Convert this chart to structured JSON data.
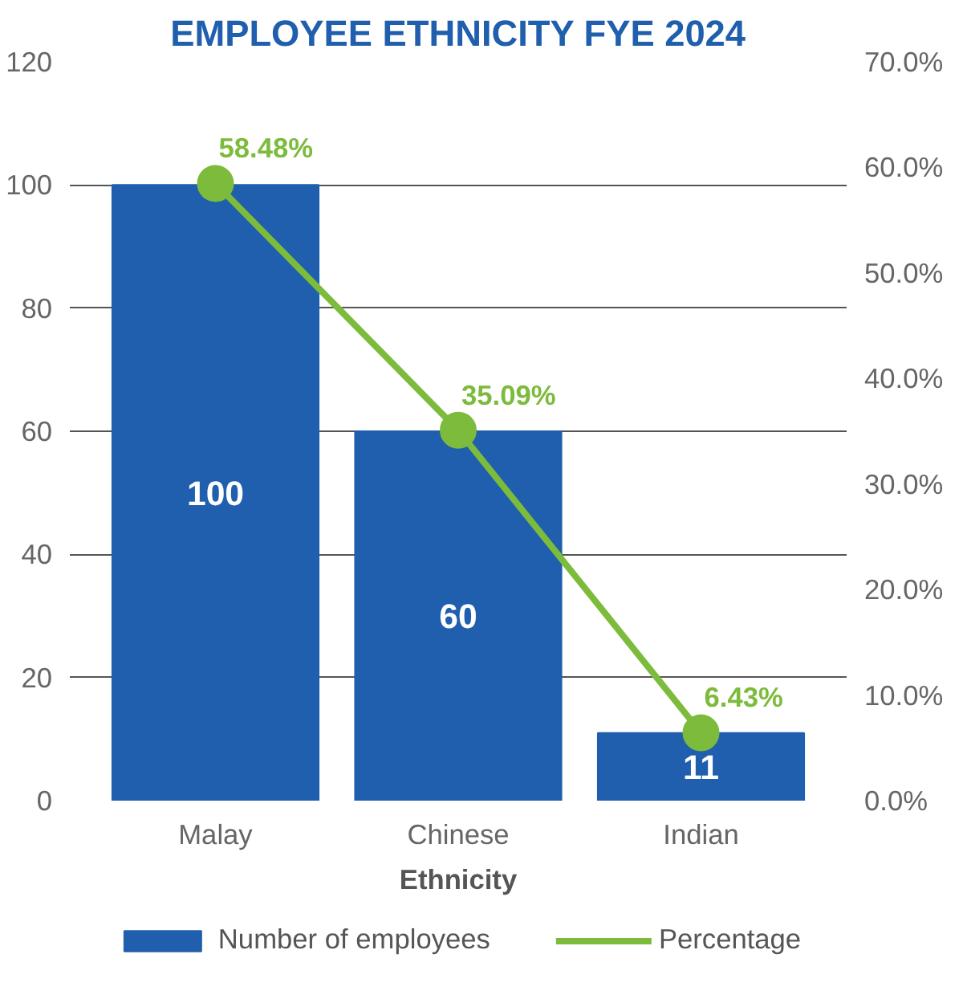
{
  "chart_data": {
    "type": "bar",
    "title": "EMPLOYEE ETHNICITY FYE 2024",
    "xlabel": "Ethnicity",
    "categories": [
      "Malay",
      "Chinese",
      "Indian"
    ],
    "series": [
      {
        "name": "Number of employees",
        "color": "#1f5fad",
        "values": [
          100,
          60,
          11
        ],
        "value_labels": [
          "100",
          "60",
          "11"
        ]
      },
      {
        "name": "Percentage",
        "type": "line",
        "axis": "y2",
        "color": "#7dbb3c",
        "values": [
          58.48,
          35.09,
          6.43
        ],
        "value_labels": [
          "58.48%",
          "35.09%",
          "6.43%"
        ],
        "marker": "circle"
      }
    ],
    "ylim": [
      0,
      120
    ],
    "yticks": [
      0,
      20,
      40,
      60,
      80,
      100,
      120
    ],
    "y2lim": [
      0,
      70
    ],
    "y2ticks": [
      {
        "value": 0,
        "label": "0.0%"
      },
      {
        "value": 10,
        "label": "10.0%"
      },
      {
        "value": 20,
        "label": "20.0%"
      },
      {
        "value": 30,
        "label": "30.0%"
      },
      {
        "value": 40,
        "label": "40.0%"
      },
      {
        "value": 50,
        "label": "50.0%"
      },
      {
        "value": 60,
        "label": "60.0%"
      },
      {
        "value": 70,
        "label": "70.0%"
      }
    ],
    "grid": "y",
    "legend": "bottom"
  }
}
